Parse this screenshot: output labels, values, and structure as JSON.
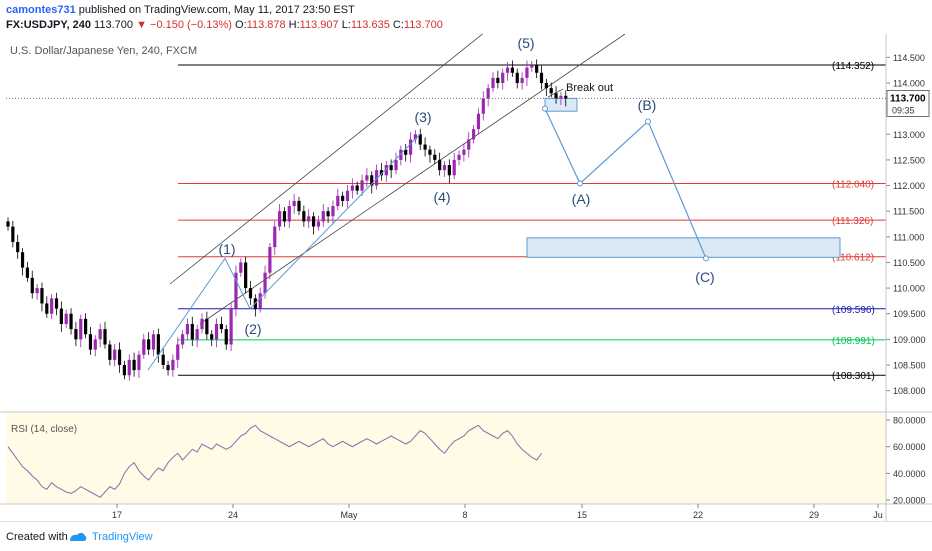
{
  "header": {
    "user": "camontes731",
    "published_text": "published on TradingView.com, May 11, 2017 23:50 EST",
    "symbol": "FX:USDJPY, 240",
    "last": "113.700",
    "change": "−0.150 (−0.13%)",
    "o_label": "O:",
    "o": "113.878",
    "h_label": "H:",
    "h": "113.907",
    "l_label": "L:",
    "l": "113.635",
    "c_label": "C:",
    "c": "113.700"
  },
  "chart_data": {
    "type": "candlestick",
    "title": "U.S. Dollar/Japanese Yen, 240, FXCM",
    "ylim": [
      107.7,
      114.8
    ],
    "x_ticks": [
      "17",
      "24",
      "May",
      "8",
      "15",
      "22",
      "29",
      "Ju"
    ],
    "y_ticks": [
      "114.500",
      "114.000",
      "113.500",
      "113.000",
      "112.500",
      "112.000",
      "111.500",
      "111.000",
      "110.500",
      "110.000",
      "109.500",
      "109.000",
      "108.500",
      "108.000"
    ],
    "current_price": "113.700",
    "countdown": "09:35",
    "levels": [
      {
        "label": "(114.352)",
        "value": 114.352,
        "color": "#000000"
      },
      {
        "label": "(112.040)",
        "value": 112.04,
        "color": "#e53935"
      },
      {
        "label": "(111.326)",
        "value": 111.326,
        "color": "#e53935"
      },
      {
        "label": "(110.612)",
        "value": 110.612,
        "color": "#e53935"
      },
      {
        "label": "(109.596)",
        "value": 109.596,
        "color": "#1a1aae"
      },
      {
        "label": "(108.991)",
        "value": 108.991,
        "color": "#00c853"
      },
      {
        "label": "(108.301)",
        "value": 108.301,
        "color": "#000000"
      }
    ],
    "wave_labels": [
      "(1)",
      "(2)",
      "(3)",
      "(4)",
      "(5)",
      "(A)",
      "(B)",
      "(C)"
    ],
    "annotation": "Break out",
    "projection": [
      113.5,
      112.04,
      113.25,
      110.58
    ],
    "closes": [
      111.2,
      110.9,
      110.7,
      110.4,
      110.2,
      109.9,
      110.0,
      109.7,
      109.5,
      109.8,
      109.6,
      109.3,
      109.5,
      109.2,
      109.0,
      109.4,
      109.1,
      108.8,
      109.0,
      109.2,
      108.9,
      108.6,
      108.8,
      108.5,
      108.3,
      108.6,
      108.4,
      108.7,
      109.0,
      108.8,
      109.1,
      108.7,
      108.5,
      108.4,
      108.6,
      108.9,
      109.1,
      109.3,
      109.0,
      109.2,
      109.4,
      109.1,
      109.0,
      109.3,
      109.2,
      108.9,
      109.6,
      110.3,
      110.5,
      110.0,
      109.8,
      109.6,
      109.9,
      110.3,
      110.8,
      111.2,
      111.5,
      111.3,
      111.6,
      111.7,
      111.5,
      111.3,
      111.4,
      111.2,
      111.3,
      111.5,
      111.4,
      111.6,
      111.8,
      111.7,
      111.9,
      112.0,
      111.9,
      112.1,
      112.2,
      112.0,
      112.3,
      112.2,
      112.4,
      112.3,
      112.5,
      112.7,
      112.6,
      112.9,
      113.0,
      112.8,
      112.7,
      112.6,
      112.5,
      112.3,
      112.4,
      112.2,
      112.5,
      112.6,
      112.7,
      112.9,
      113.1,
      113.4,
      113.7,
      113.9,
      114.1,
      114.0,
      114.2,
      114.3,
      114.2,
      114.0,
      114.1,
      114.3,
      114.35,
      114.2,
      114.0,
      113.9,
      113.8,
      113.7,
      113.75,
      113.7
    ],
    "rsi": {
      "label": "RSI (14, close)",
      "ylim": [
        17,
        86
      ],
      "y_ticks": [
        "80.0000",
        "60.0000",
        "40.0000",
        "20.0000"
      ],
      "values": [
        60,
        55,
        50,
        45,
        42,
        38,
        35,
        30,
        28,
        33,
        30,
        28,
        26,
        25,
        27,
        30,
        28,
        26,
        24,
        22,
        26,
        30,
        28,
        32,
        40,
        45,
        48,
        42,
        38,
        35,
        40,
        44,
        42,
        48,
        52,
        55,
        50,
        54,
        58,
        56,
        62,
        60,
        58,
        62,
        60,
        58,
        60,
        64,
        68,
        70,
        74,
        76,
        72,
        70,
        68,
        66,
        64,
        62,
        60,
        62,
        64,
        62,
        60,
        62,
        64,
        66,
        62,
        60,
        62,
        64,
        62,
        60,
        62,
        64,
        66,
        64,
        62,
        64,
        66,
        68,
        66,
        64,
        62,
        64,
        68,
        72,
        70,
        66,
        62,
        58,
        55,
        60,
        64,
        66,
        68,
        72,
        74,
        76,
        72,
        70,
        68,
        66,
        70,
        72,
        68,
        62,
        58,
        55,
        52,
        50,
        55
      ],
      "rsi_x_start_index": 0
    }
  },
  "footer": {
    "created_with": "Created with",
    "brand": "TradingView"
  },
  "colors": {
    "bull": "#9c27b0",
    "bear": "#000000",
    "projection": "#5b9bd5",
    "rsi_line": "#8e6aa8",
    "rsi_bg": "#fffbe6"
  }
}
